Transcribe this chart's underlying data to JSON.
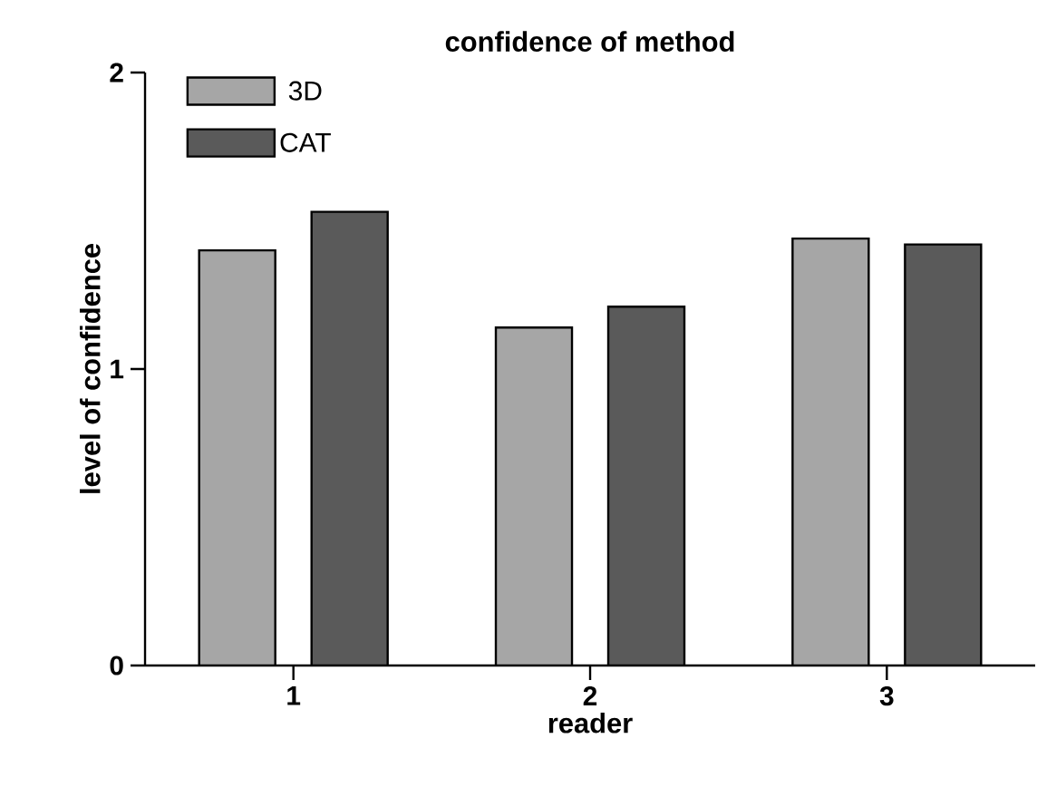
{
  "chart_data": {
    "type": "bar",
    "title": "confidence of method",
    "xlabel": "reader",
    "ylabel": "level of confidence",
    "categories": [
      "1",
      "2",
      "3"
    ],
    "series": [
      {
        "name": "3D",
        "color": "#a6a6a6",
        "values": [
          1.4,
          1.14,
          1.44
        ]
      },
      {
        "name": "CAT",
        "color": "#5a5a5a",
        "values": [
          1.53,
          1.21,
          1.42
        ]
      }
    ],
    "ylim": [
      0,
      2
    ],
    "yticks": [
      0,
      1,
      2
    ],
    "grid": false,
    "legend": "top left"
  }
}
